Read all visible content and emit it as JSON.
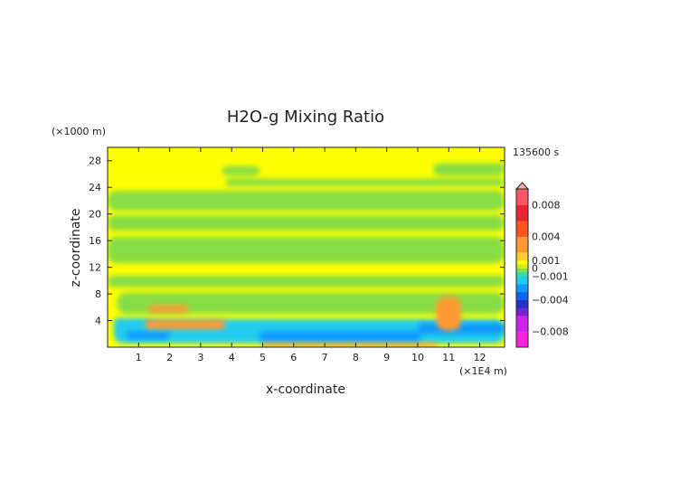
{
  "chart_data": {
    "type": "heatmap",
    "title": "H2O-g Mixing Ratio",
    "xlabel": "x-coordinate",
    "ylabel": "z-coordinate",
    "x_unit": "(×1E4 m)",
    "y_unit": "(×1000 m)",
    "time_label": "135600 s",
    "xlim": [
      0,
      12.8
    ],
    "ylim": [
      0,
      30
    ],
    "x_ticks": [
      1,
      2,
      3,
      4,
      5,
      6,
      7,
      8,
      9,
      10,
      11,
      12
    ],
    "y_ticks": [
      4,
      8,
      12,
      16,
      20,
      24,
      28
    ],
    "colorbar": {
      "range": [
        -0.01,
        0.01
      ],
      "tick_values": [
        0.008,
        0.004,
        0.001,
        0,
        -0.001,
        -0.004,
        -0.008
      ],
      "tick_labels": [
        "0.008",
        "0.004",
        "0.001",
        "0",
        "−0.001",
        "−0.004",
        "−0.008"
      ],
      "stops": [
        {
          "value": -0.01,
          "color": "#ff22dd"
        },
        {
          "value": -0.008,
          "color": "#cc22ee"
        },
        {
          "value": -0.006,
          "color": "#7722cc"
        },
        {
          "value": -0.005,
          "color": "#2233cc"
        },
        {
          "value": -0.004,
          "color": "#1166ee"
        },
        {
          "value": -0.003,
          "color": "#1199ff"
        },
        {
          "value": -0.002,
          "color": "#22ccee"
        },
        {
          "value": -0.001,
          "color": "#33ddaa"
        },
        {
          "value": -0.0005,
          "color": "#88dd44"
        },
        {
          "value": 0,
          "color": "#ccee22"
        },
        {
          "value": 0.0005,
          "color": "#ffff00"
        },
        {
          "value": 0.001,
          "color": "#ffcc33"
        },
        {
          "value": 0.002,
          "color": "#ff9933"
        },
        {
          "value": 0.004,
          "color": "#ff5522"
        },
        {
          "value": 0.006,
          "color": "#ee2233"
        },
        {
          "value": 0.008,
          "color": "#ff5566"
        },
        {
          "value": 0.01,
          "color": "#ffaaaa"
        }
      ]
    },
    "field": {
      "background_value": 0.0005,
      "green_value": -0.0004,
      "cyan_value": -0.0015,
      "blue_value": -0.0028,
      "orange_value": 0.0028,
      "green_bands": [
        {
          "x0": 0,
          "x1": 12.8,
          "z0": 20.5,
          "z1": 23.5
        },
        {
          "x0": 0,
          "x1": 12.8,
          "z0": 17.5,
          "z1": 19.8
        },
        {
          "x0": 0,
          "x1": 12.8,
          "z0": 12.6,
          "z1": 16.6
        },
        {
          "x0": 0,
          "x1": 12.8,
          "z0": 9.0,
          "z1": 10.8
        },
        {
          "x0": 0.3,
          "x1": 12.8,
          "z0": 5.0,
          "z1": 8.2
        },
        {
          "x0": 3.8,
          "x1": 12.8,
          "z0": 24.2,
          "z1": 25.3
        },
        {
          "x0": 3.7,
          "x1": 4.9,
          "z0": 25.8,
          "z1": 27.2
        },
        {
          "x0": 10.5,
          "x1": 12.8,
          "z0": 25.8,
          "z1": 27.6
        }
      ],
      "cyan_regions": [
        {
          "x0": 0.2,
          "x1": 12.8,
          "z0": 0.6,
          "z1": 4.2
        },
        {
          "x0": 0.2,
          "x1": 1.4,
          "z0": 3.0,
          "z1": 4.4
        }
      ],
      "blue_regions": [
        {
          "x0": 0.6,
          "x1": 2.0,
          "z0": 1.2,
          "z1": 2.4
        },
        {
          "x0": 4.9,
          "x1": 10.1,
          "z0": 0.8,
          "z1": 2.4
        },
        {
          "x0": 10.0,
          "x1": 12.8,
          "z0": 2.0,
          "z1": 3.6
        }
      ],
      "orange_regions": [
        {
          "x0": 1.2,
          "x1": 3.8,
          "z0": 2.7,
          "z1": 4.1
        },
        {
          "x0": 1.3,
          "x1": 2.6,
          "z0": 5.2,
          "z1": 6.3
        },
        {
          "x0": 10.6,
          "x1": 11.4,
          "z0": 2.5,
          "z1": 7.6
        },
        {
          "x0": 5.0,
          "x1": 10.6,
          "z0": 0.0,
          "z1": 0.6
        }
      ]
    }
  }
}
